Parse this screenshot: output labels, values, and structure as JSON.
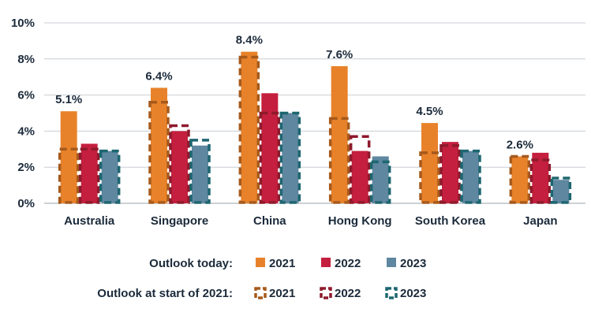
{
  "chart_data": {
    "type": "bar",
    "categories": [
      "Australia",
      "Singapore",
      "China",
      "Hong Kong",
      "South Korea",
      "Japan"
    ],
    "ylim": [
      0,
      10
    ],
    "yticks": [
      "0%",
      "2%",
      "4%",
      "6%",
      "8%",
      "10%"
    ],
    "ytick_values": [
      0,
      2,
      4,
      6,
      8,
      10
    ],
    "grid": true,
    "series_today": [
      {
        "name": "2021",
        "color": "#e8822a",
        "values": [
          5.1,
          6.4,
          8.4,
          7.6,
          4.45,
          2.6
        ]
      },
      {
        "name": "2022",
        "color": "#c41f3e",
        "values": [
          3.3,
          4.0,
          6.1,
          2.9,
          3.4,
          2.8
        ]
      },
      {
        "name": "2023",
        "color": "#5f87a0",
        "values": [
          2.9,
          3.2,
          5.0,
          2.6,
          2.9,
          1.3
        ]
      }
    ],
    "series_start": [
      {
        "name": "2021",
        "color": "#a65a1c",
        "values": [
          3.0,
          5.6,
          8.1,
          4.7,
          2.8,
          2.6
        ]
      },
      {
        "name": "2022",
        "color": "#8e1a2c",
        "values": [
          3.0,
          4.3,
          5.0,
          3.7,
          3.2,
          2.4
        ]
      },
      {
        "name": "2023",
        "color": "#1d6670",
        "values": [
          2.9,
          3.5,
          5.0,
          2.3,
          2.9,
          1.4
        ]
      }
    ],
    "data_labels": [
      "5.1%",
      "6.4%",
      "8.4%",
      "7.6%",
      "4.5%",
      "2.6%"
    ],
    "legend": {
      "today_title": "Outlook today:",
      "start_title": "Outlook at start of 2021:",
      "labels": [
        "2021",
        "2022",
        "2023"
      ]
    }
  }
}
